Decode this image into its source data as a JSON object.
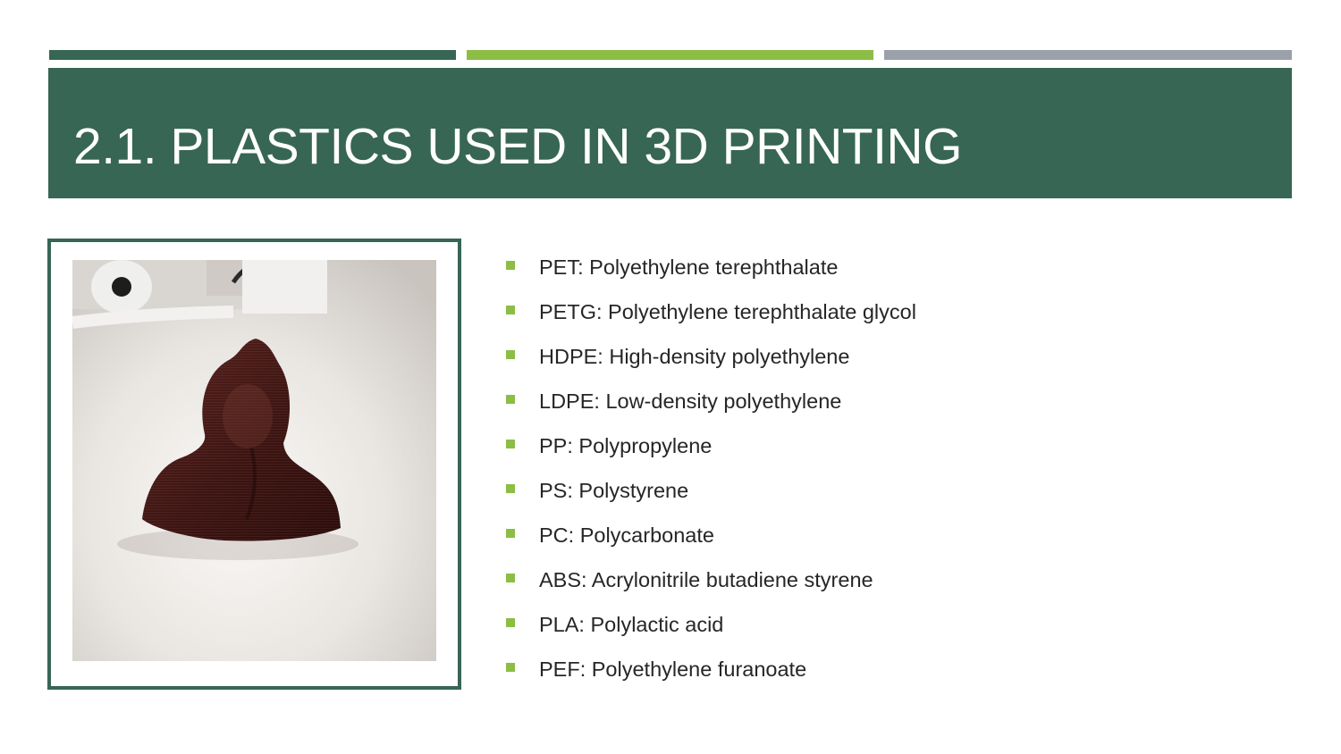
{
  "colors": {
    "accent_dark_green": "#376654",
    "accent_light_green": "#8cbd45",
    "accent_gray": "#9aa1a8",
    "title_band": "#376654",
    "bullet_marker": "#8cbd45",
    "photo_object": "#4a1a16"
  },
  "slide": {
    "title": "2.1. PLASTICS USED IN 3D PRINTING"
  },
  "image": {
    "icon": "3d-printed-bust-photo"
  },
  "bullets": [
    {
      "text": "PET: Polyethylene terephthalate"
    },
    {
      "text": "PETG: Polyethylene terephthalate glycol"
    },
    {
      "text": "HDPE: High-density polyethylene"
    },
    {
      "text": "LDPE: Low-density polyethylene"
    },
    {
      "text": "PP: Polypropylene"
    },
    {
      "text": "PS: Polystyrene"
    },
    {
      "text": "PC: Polycarbonate"
    },
    {
      "text": "ABS: Acrylonitrile butadiene styrene"
    },
    {
      "text": "PLA: Polylactic acid"
    },
    {
      "text": "PEF: Polyethylene furanoate"
    }
  ]
}
